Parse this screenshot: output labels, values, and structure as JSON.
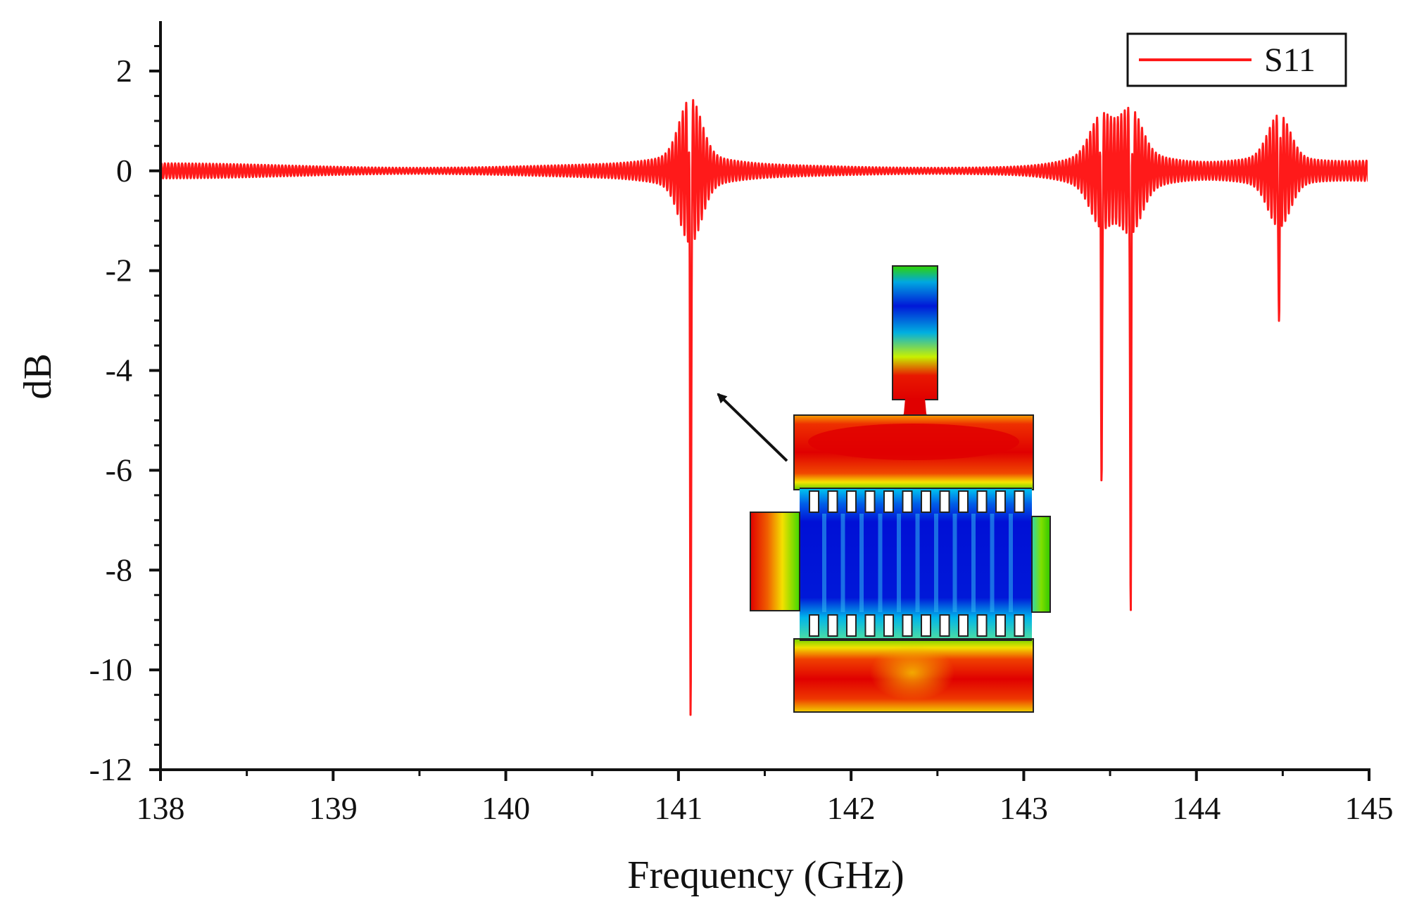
{
  "chart_data": {
    "type": "line",
    "title": "",
    "xlabel": "Frequency (GHz)",
    "ylabel": "dB",
    "xlim": [
      138,
      145
    ],
    "ylim": [
      -12,
      3
    ],
    "xticks": [
      138,
      139,
      140,
      141,
      142,
      143,
      144,
      145
    ],
    "yticks": [
      2,
      0,
      -2,
      -4,
      -6,
      -8,
      -10,
      -12
    ],
    "grid": false,
    "legend_position": "top-right",
    "series": [
      {
        "name": "S11",
        "color": "#ff1a1a",
        "baseline_db": 0,
        "ripple_amplitude_db": 0.15,
        "ripple_period_ghz": 0.02,
        "resonances": [
          {
            "freq_ghz": 141.07,
            "min_db": -10.9,
            "ringing_peak_db": 1.3
          },
          {
            "freq_ghz": 143.45,
            "min_db": -6.2,
            "ringing_peak_db": 0.9
          },
          {
            "freq_ghz": 143.62,
            "min_db": -8.8,
            "ringing_peak_db": 1.0
          },
          {
            "freq_ghz": 144.48,
            "min_db": -2.8,
            "ringing_peak_db": 1.0
          }
        ]
      }
    ],
    "inset": {
      "content": "field-distribution-simulation",
      "arrow_target_freq_ghz": 141.07
    },
    "colors": {
      "axis": "#111111",
      "field_high": "#e00000",
      "field_mid": "#f5e400",
      "field_low": "#0014d8"
    }
  }
}
